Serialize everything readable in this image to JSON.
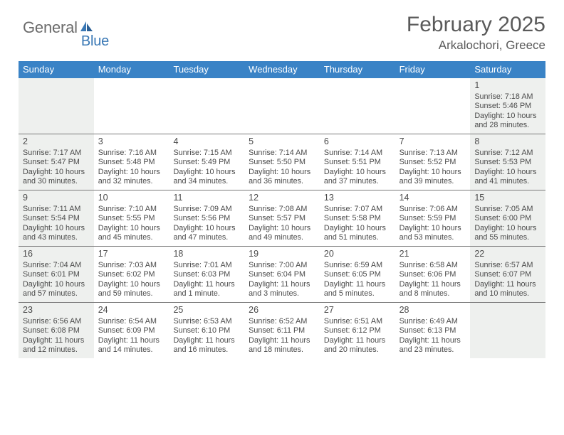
{
  "logo": {
    "general": "General",
    "blue": "Blue"
  },
  "title": "February 2025",
  "location": "Arkalochori, Greece",
  "dayHeaders": [
    "Sunday",
    "Monday",
    "Tuesday",
    "Wednesday",
    "Thursday",
    "Friday",
    "Saturday"
  ],
  "colors": {
    "headerBg": "#3a83c6",
    "headerText": "#ffffff",
    "bodyText": "#4a4a4a",
    "shadedBg": "#eef0ee",
    "ruleColor": "#7a7a7a",
    "logoBlue": "#3a78b5"
  },
  "weeks": [
    [
      {
        "shaded": true
      },
      {
        "shaded": false
      },
      {
        "shaded": false
      },
      {
        "shaded": false
      },
      {
        "shaded": false
      },
      {
        "shaded": false
      },
      {
        "day": "1",
        "shaded": true,
        "sunrise": "Sunrise: 7:18 AM",
        "sunset": "Sunset: 5:46 PM",
        "daylight1": "Daylight: 10 hours",
        "daylight2": "and 28 minutes."
      }
    ],
    [
      {
        "day": "2",
        "shaded": true,
        "sunrise": "Sunrise: 7:17 AM",
        "sunset": "Sunset: 5:47 PM",
        "daylight1": "Daylight: 10 hours",
        "daylight2": "and 30 minutes."
      },
      {
        "day": "3",
        "shaded": false,
        "sunrise": "Sunrise: 7:16 AM",
        "sunset": "Sunset: 5:48 PM",
        "daylight1": "Daylight: 10 hours",
        "daylight2": "and 32 minutes."
      },
      {
        "day": "4",
        "shaded": false,
        "sunrise": "Sunrise: 7:15 AM",
        "sunset": "Sunset: 5:49 PM",
        "daylight1": "Daylight: 10 hours",
        "daylight2": "and 34 minutes."
      },
      {
        "day": "5",
        "shaded": false,
        "sunrise": "Sunrise: 7:14 AM",
        "sunset": "Sunset: 5:50 PM",
        "daylight1": "Daylight: 10 hours",
        "daylight2": "and 36 minutes."
      },
      {
        "day": "6",
        "shaded": false,
        "sunrise": "Sunrise: 7:14 AM",
        "sunset": "Sunset: 5:51 PM",
        "daylight1": "Daylight: 10 hours",
        "daylight2": "and 37 minutes."
      },
      {
        "day": "7",
        "shaded": false,
        "sunrise": "Sunrise: 7:13 AM",
        "sunset": "Sunset: 5:52 PM",
        "daylight1": "Daylight: 10 hours",
        "daylight2": "and 39 minutes."
      },
      {
        "day": "8",
        "shaded": true,
        "sunrise": "Sunrise: 7:12 AM",
        "sunset": "Sunset: 5:53 PM",
        "daylight1": "Daylight: 10 hours",
        "daylight2": "and 41 minutes."
      }
    ],
    [
      {
        "day": "9",
        "shaded": true,
        "sunrise": "Sunrise: 7:11 AM",
        "sunset": "Sunset: 5:54 PM",
        "daylight1": "Daylight: 10 hours",
        "daylight2": "and 43 minutes."
      },
      {
        "day": "10",
        "shaded": false,
        "sunrise": "Sunrise: 7:10 AM",
        "sunset": "Sunset: 5:55 PM",
        "daylight1": "Daylight: 10 hours",
        "daylight2": "and 45 minutes."
      },
      {
        "day": "11",
        "shaded": false,
        "sunrise": "Sunrise: 7:09 AM",
        "sunset": "Sunset: 5:56 PM",
        "daylight1": "Daylight: 10 hours",
        "daylight2": "and 47 minutes."
      },
      {
        "day": "12",
        "shaded": false,
        "sunrise": "Sunrise: 7:08 AM",
        "sunset": "Sunset: 5:57 PM",
        "daylight1": "Daylight: 10 hours",
        "daylight2": "and 49 minutes."
      },
      {
        "day": "13",
        "shaded": false,
        "sunrise": "Sunrise: 7:07 AM",
        "sunset": "Sunset: 5:58 PM",
        "daylight1": "Daylight: 10 hours",
        "daylight2": "and 51 minutes."
      },
      {
        "day": "14",
        "shaded": false,
        "sunrise": "Sunrise: 7:06 AM",
        "sunset": "Sunset: 5:59 PM",
        "daylight1": "Daylight: 10 hours",
        "daylight2": "and 53 minutes."
      },
      {
        "day": "15",
        "shaded": true,
        "sunrise": "Sunrise: 7:05 AM",
        "sunset": "Sunset: 6:00 PM",
        "daylight1": "Daylight: 10 hours",
        "daylight2": "and 55 minutes."
      }
    ],
    [
      {
        "day": "16",
        "shaded": true,
        "sunrise": "Sunrise: 7:04 AM",
        "sunset": "Sunset: 6:01 PM",
        "daylight1": "Daylight: 10 hours",
        "daylight2": "and 57 minutes."
      },
      {
        "day": "17",
        "shaded": false,
        "sunrise": "Sunrise: 7:03 AM",
        "sunset": "Sunset: 6:02 PM",
        "daylight1": "Daylight: 10 hours",
        "daylight2": "and 59 minutes."
      },
      {
        "day": "18",
        "shaded": false,
        "sunrise": "Sunrise: 7:01 AM",
        "sunset": "Sunset: 6:03 PM",
        "daylight1": "Daylight: 11 hours",
        "daylight2": "and 1 minute."
      },
      {
        "day": "19",
        "shaded": false,
        "sunrise": "Sunrise: 7:00 AM",
        "sunset": "Sunset: 6:04 PM",
        "daylight1": "Daylight: 11 hours",
        "daylight2": "and 3 minutes."
      },
      {
        "day": "20",
        "shaded": false,
        "sunrise": "Sunrise: 6:59 AM",
        "sunset": "Sunset: 6:05 PM",
        "daylight1": "Daylight: 11 hours",
        "daylight2": "and 5 minutes."
      },
      {
        "day": "21",
        "shaded": false,
        "sunrise": "Sunrise: 6:58 AM",
        "sunset": "Sunset: 6:06 PM",
        "daylight1": "Daylight: 11 hours",
        "daylight2": "and 8 minutes."
      },
      {
        "day": "22",
        "shaded": true,
        "sunrise": "Sunrise: 6:57 AM",
        "sunset": "Sunset: 6:07 PM",
        "daylight1": "Daylight: 11 hours",
        "daylight2": "and 10 minutes."
      }
    ],
    [
      {
        "day": "23",
        "shaded": true,
        "sunrise": "Sunrise: 6:56 AM",
        "sunset": "Sunset: 6:08 PM",
        "daylight1": "Daylight: 11 hours",
        "daylight2": "and 12 minutes."
      },
      {
        "day": "24",
        "shaded": false,
        "sunrise": "Sunrise: 6:54 AM",
        "sunset": "Sunset: 6:09 PM",
        "daylight1": "Daylight: 11 hours",
        "daylight2": "and 14 minutes."
      },
      {
        "day": "25",
        "shaded": false,
        "sunrise": "Sunrise: 6:53 AM",
        "sunset": "Sunset: 6:10 PM",
        "daylight1": "Daylight: 11 hours",
        "daylight2": "and 16 minutes."
      },
      {
        "day": "26",
        "shaded": false,
        "sunrise": "Sunrise: 6:52 AM",
        "sunset": "Sunset: 6:11 PM",
        "daylight1": "Daylight: 11 hours",
        "daylight2": "and 18 minutes."
      },
      {
        "day": "27",
        "shaded": false,
        "sunrise": "Sunrise: 6:51 AM",
        "sunset": "Sunset: 6:12 PM",
        "daylight1": "Daylight: 11 hours",
        "daylight2": "and 20 minutes."
      },
      {
        "day": "28",
        "shaded": false,
        "sunrise": "Sunrise: 6:49 AM",
        "sunset": "Sunset: 6:13 PM",
        "daylight1": "Daylight: 11 hours",
        "daylight2": "and 23 minutes."
      },
      {
        "shaded": true
      }
    ]
  ]
}
